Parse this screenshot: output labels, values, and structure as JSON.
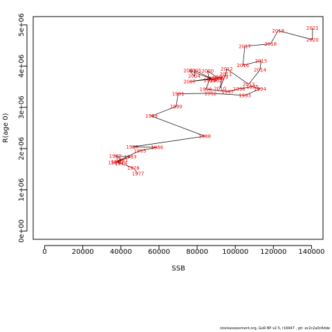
{
  "chart_data": {
    "type": "line",
    "xlabel": "SSB",
    "ylabel": "R(age 0)",
    "xlim": [
      -6000,
      146000
    ],
    "ylim": [
      -200000,
      5200000
    ],
    "x_ticks": [
      0,
      20000,
      40000,
      60000,
      80000,
      100000,
      120000,
      140000
    ],
    "x_tick_labels": [
      "0",
      "20000",
      "40000",
      "60000",
      "80000",
      "100000",
      "120000",
      "140000"
    ],
    "y_ticks": [
      0,
      1000000,
      2000000,
      3000000,
      4000000,
      5000000
    ],
    "y_tick_labels": [
      "0e+00",
      "1e+06",
      "2e+06",
      "3e+06",
      "4e+06",
      "5e+06"
    ],
    "series_color": "#ff0000",
    "line_color": "#000000",
    "points": [
      {
        "year": "1977",
        "x": 49000,
        "y": 1390000
      },
      {
        "year": "1978",
        "x": 46500,
        "y": 1530000
      },
      {
        "year": "1979",
        "x": 40000,
        "y": 1640000
      },
      {
        "year": "1980",
        "x": 38000,
        "y": 1680000
      },
      {
        "year": "1981",
        "x": 40500,
        "y": 1720000
      },
      {
        "year": "1982",
        "x": 37000,
        "y": 1820000
      },
      {
        "year": "1983",
        "x": 45000,
        "y": 1800000
      },
      {
        "year": "1984",
        "x": 36500,
        "y": 1660000
      },
      {
        "year": "1985",
        "x": 50000,
        "y": 1950000
      },
      {
        "year": "1986",
        "x": 59000,
        "y": 2030000
      },
      {
        "year": "1987",
        "x": 46000,
        "y": 2040000
      },
      {
        "year": "1988",
        "x": 84000,
        "y": 2300000
      },
      {
        "year": "1989",
        "x": 56000,
        "y": 2790000
      },
      {
        "year": "1990",
        "x": 69000,
        "y": 3020000
      },
      {
        "year": "1991",
        "x": 70000,
        "y": 3330000
      },
      {
        "year": "1992",
        "x": 87000,
        "y": 3340000
      },
      {
        "year": "1993",
        "x": 105000,
        "y": 3290000
      },
      {
        "year": "1994",
        "x": 113000,
        "y": 3450000
      },
      {
        "year": "1995",
        "x": 109000,
        "y": 3500000
      },
      {
        "year": "1996",
        "x": 102000,
        "y": 3450000
      },
      {
        "year": "1997",
        "x": 96000,
        "y": 3380000
      },
      {
        "year": "1998",
        "x": 84500,
        "y": 3440000
      },
      {
        "year": "1999",
        "x": 86500,
        "y": 3660000
      },
      {
        "year": "2000",
        "x": 85500,
        "y": 3880000
      },
      {
        "year": "2001",
        "x": 91000,
        "y": 3710000
      },
      {
        "year": "2002",
        "x": 90000,
        "y": 3650000
      },
      {
        "year": "2003",
        "x": 76000,
        "y": 3890000
      },
      {
        "year": "2004",
        "x": 78500,
        "y": 3760000
      },
      {
        "year": "2005",
        "x": 79000,
        "y": 3890000
      },
      {
        "year": "2006",
        "x": 87500,
        "y": 3700000
      },
      {
        "year": "2007",
        "x": 76000,
        "y": 3620000
      },
      {
        "year": "2008",
        "x": 90000,
        "y": 3700000
      },
      {
        "year": "2009",
        "x": 93000,
        "y": 3730000
      },
      {
        "year": "2010",
        "x": 92000,
        "y": 3460000
      },
      {
        "year": "2011",
        "x": 95000,
        "y": 3810000
      },
      {
        "year": "2012",
        "x": 95500,
        "y": 3930000
      },
      {
        "year": "2013",
        "x": 107000,
        "y": 3560000
      },
      {
        "year": "2014",
        "x": 113000,
        "y": 3910000
      },
      {
        "year": "2015",
        "x": 113500,
        "y": 4130000
      },
      {
        "year": "2016",
        "x": 104000,
        "y": 4020000
      },
      {
        "year": "2017",
        "x": 105000,
        "y": 4480000
      },
      {
        "year": "2018",
        "x": 118500,
        "y": 4540000
      },
      {
        "year": "2019",
        "x": 122500,
        "y": 4860000
      },
      {
        "year": "2020",
        "x": 140500,
        "y": 4640000
      },
      {
        "year": "2021",
        "x": 140500,
        "y": 4920000
      }
    ]
  },
  "footer": "stockassessment.org, GoR BP  v2.5, r16947 , git: ec2c2a0c6dde"
}
